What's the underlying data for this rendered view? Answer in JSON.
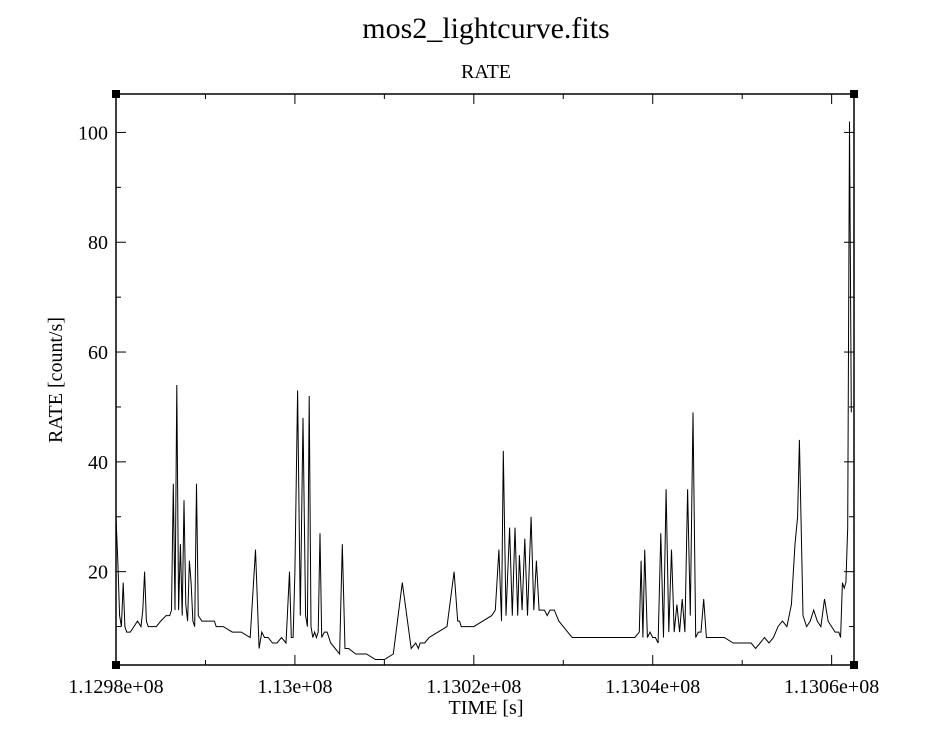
{
  "chart_data": {
    "type": "line",
    "title": "mos2_lightcurve.fits",
    "subtitle": "RATE",
    "xlabel": "TIME [s]",
    "ylabel": "RATE [count/s]",
    "xlim": [
      112980000,
      113062500
    ],
    "ylim": [
      3,
      107
    ],
    "x_ticks": [
      112980000,
      113000000,
      113020000,
      113040000,
      113060000
    ],
    "x_tick_labels": [
      "1.1298e+08",
      "1.13e+08",
      "1.1302e+08",
      "1.1304e+08",
      "1.1306e+08"
    ],
    "y_ticks": [
      20,
      40,
      60,
      80,
      100
    ],
    "y_tick_labels": [
      "20",
      "40",
      "60",
      "80",
      "100"
    ],
    "grid": false,
    "series": [
      {
        "color": "#000000",
        "x": [
          112980000,
          112980200,
          112980400,
          112980600,
          112980800,
          112981000,
          112981200,
          112981400,
          112981600,
          112982000,
          112982400,
          112982800,
          112983000,
          112983200,
          112983400,
          112983600,
          112984000,
          112984500,
          112985000,
          112985600,
          112986000,
          112986200,
          112986400,
          112986600,
          112986800,
          112987000,
          112987200,
          112987400,
          112987600,
          112987800,
          112988000,
          112988200,
          112988400,
          112988600,
          112988800,
          112989000,
          112989200,
          112989600,
          112990000,
          112990400,
          112990600,
          112990800,
          112991000,
          112991200,
          112991600,
          112992000,
          112993000,
          112994000,
          112995000,
          112995600,
          112996000,
          112996300,
          112996600,
          112997000,
          112997500,
          112998000,
          112998500,
          112999000,
          112999400,
          112999600,
          112999800,
          113000000,
          113000300,
          113000600,
          113000900,
          113001200,
          113001400,
          113001600,
          113001800,
          113002000,
          113002200,
          113002400,
          113002600,
          113002800,
          113003000,
          113003300,
          113003600,
          113004000,
          113004500,
          113005000,
          113005300,
          113005600,
          113006000,
          113006800,
          113007500,
          113008000,
          113009000,
          113010000,
          113011000,
          113012000,
          113013000,
          113013500,
          113013800,
          113014000,
          113014500,
          113015000,
          113016000,
          113017000,
          113017800,
          113018200,
          113018400,
          113018600,
          113019000,
          113020000,
          113021000,
          113022000,
          113022400,
          113022800,
          113023100,
          113023300,
          113023600,
          113024000,
          113024300,
          113024600,
          113024900,
          113025100,
          113025400,
          113025700,
          113026000,
          113026400,
          113026700,
          113027000,
          113027300,
          113027600,
          113027900,
          113028200,
          113028500,
          113028800,
          113029000,
          113029500,
          113030000,
          113030500,
          113031000,
          113032000,
          113033000,
          113034000,
          113035000,
          113036000,
          113037000,
          113038000,
          113038500,
          113038700,
          113038900,
          113039100,
          113039400,
          113039700,
          113040000,
          113040300,
          113040600,
          113040900,
          113041200,
          113041500,
          113041800,
          113042100,
          113042400,
          113042700,
          113043000,
          113043300,
          113043600,
          113043900,
          113044200,
          113044500,
          113044800,
          113045100,
          113045400,
          113045700,
          113046000,
          113047000,
          113048000,
          113049000,
          113050000,
          113051000,
          113051500,
          113052000,
          113052500,
          113053000,
          113053500,
          113054000,
          113054500,
          113055000,
          113055500,
          113055900,
          113056200,
          113056400,
          113056800,
          113057200,
          113057600,
          113058000,
          113058400,
          113058800,
          113059200,
          113059600,
          113060000,
          113060400,
          113060800,
          113061000,
          113061200,
          113061400,
          113061600,
          113061800,
          113062000,
          113062200
        ],
        "y": [
          30,
          22,
          12,
          10,
          18,
          10,
          9,
          9,
          9,
          10,
          11,
          10,
          13,
          20,
          11,
          10,
          10,
          10,
          11,
          12,
          12,
          13,
          36,
          13,
          54,
          13,
          25,
          12,
          33,
          14,
          11,
          22,
          18,
          11,
          10,
          36,
          12,
          11,
          11,
          11,
          11,
          11,
          11,
          10,
          10,
          10,
          9,
          9,
          8,
          24,
          6,
          9,
          8,
          8,
          7,
          7,
          8,
          7,
          20,
          8,
          8,
          20,
          53,
          12,
          48,
          12,
          10,
          52,
          10,
          8,
          9,
          8,
          9,
          27,
          8,
          9,
          9,
          7,
          6,
          5,
          25,
          6,
          6,
          5,
          5,
          5,
          4,
          4,
          5,
          18,
          6,
          7,
          6,
          7,
          7,
          8,
          9,
          10,
          20,
          11,
          11,
          10,
          10,
          10,
          11,
          12,
          13,
          24,
          11,
          42,
          12,
          28,
          12,
          28,
          12,
          23,
          13,
          26,
          12,
          30,
          13,
          22,
          13,
          13,
          13,
          12,
          13,
          13,
          13,
          11,
          10,
          9,
          8,
          8,
          8,
          8,
          8,
          8,
          8,
          8,
          9,
          22,
          8,
          24,
          8,
          9,
          8,
          8,
          7,
          27,
          8,
          35,
          9,
          24,
          9,
          14,
          9,
          15,
          9,
          35,
          12,
          49,
          8,
          9,
          9,
          15,
          8,
          8,
          8,
          7,
          7,
          7,
          6,
          7,
          8,
          7,
          8,
          10,
          11,
          10,
          14,
          25,
          30,
          44,
          12,
          10,
          11,
          13,
          11,
          10,
          15,
          11,
          10,
          9,
          9,
          8,
          18,
          17,
          18,
          28,
          102,
          49
        ]
      }
    ]
  }
}
